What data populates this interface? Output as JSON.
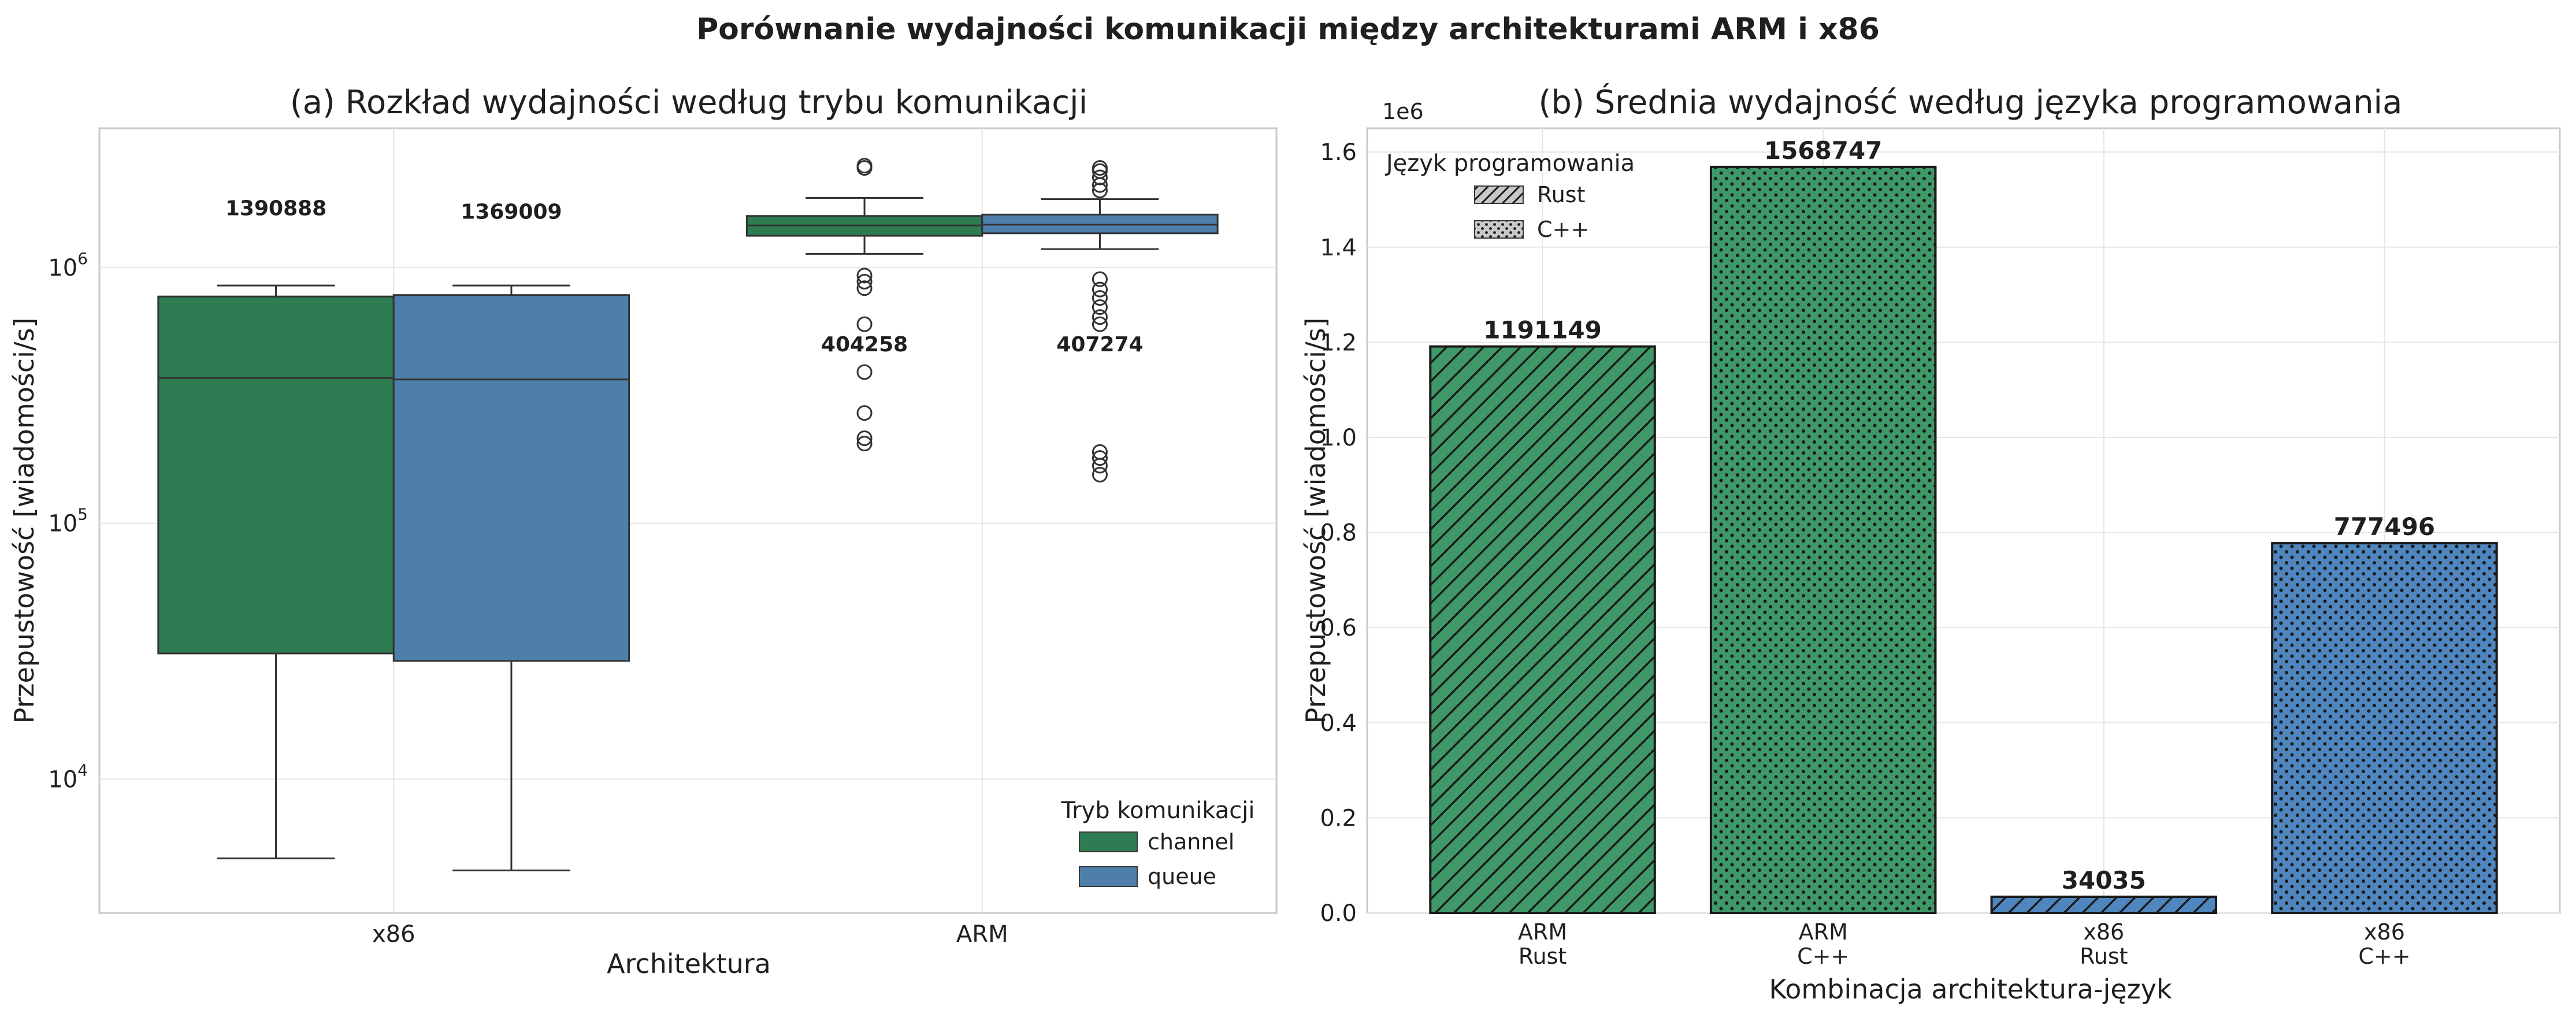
{
  "figure": {
    "suptitle": "Porównanie wydajności komunikacji między architekturami ARM i x86"
  },
  "colors": {
    "channel": "#2e7d52",
    "queue": "#4e7fab",
    "arm_bar": "#3f9868",
    "x86_bar": "#4f86bf",
    "grid": "#e5e5e5",
    "legend_swatch": "#c8c8c8"
  },
  "chart_data": [
    {
      "type": "box",
      "title": "(a) Rozkład wydajności według trybu komunikacji",
      "xlabel": "Architektura",
      "ylabel": "Przepustowość [wiadomości/s]",
      "yscale": "log",
      "ylim": [
        3000,
        3500000
      ],
      "yticks": [
        {
          "value": 10000,
          "base": "10",
          "exp": "4"
        },
        {
          "value": 100000,
          "base": "10",
          "exp": "5"
        },
        {
          "value": 1000000,
          "base": "10",
          "exp": "6"
        }
      ],
      "categories": [
        "x86",
        "ARM"
      ],
      "grid": true,
      "legend": {
        "title": "Tryb komunikacji",
        "position": "lower-right"
      },
      "series": [
        {
          "name": "channel",
          "color_key": "channel",
          "boxes": [
            {
              "q1": 31000,
              "median": 370000,
              "q3": 770000,
              "whisker_low": 4900,
              "whisker_high": 850000,
              "fliers": []
            },
            {
              "q1": 1330000,
              "median": 1460000,
              "q3": 1590000,
              "whisker_low": 1130000,
              "whisker_high": 1870000,
              "fliers": [
                2450000,
                2500000,
                930000,
                880000,
                830000,
                600000,
                390000,
                270000,
                215000,
                205000
              ]
            }
          ]
        },
        {
          "name": "queue",
          "color_key": "queue",
          "boxes": [
            {
              "q1": 29000,
              "median": 365000,
              "q3": 780000,
              "whisker_low": 4400,
              "whisker_high": 850000,
              "fliers": []
            },
            {
              "q1": 1360000,
              "median": 1470000,
              "q3": 1610000,
              "whisker_low": 1180000,
              "whisker_high": 1850000,
              "fliers": [
                2450000,
                2380000,
                2250000,
                2100000,
                2000000,
                900000,
                820000,
                760000,
                700000,
                640000,
                600000,
                190000,
                180000,
                168000,
                155000
              ]
            }
          ]
        }
      ],
      "annotations": [
        {
          "text": "1390888",
          "cat_index": 0,
          "series_index": 0,
          "y": 1600000
        },
        {
          "text": "1369009",
          "cat_index": 0,
          "series_index": 1,
          "y": 1550000
        },
        {
          "text": "404258",
          "cat_index": 1,
          "series_index": 0,
          "y": 470000
        },
        {
          "text": "407274",
          "cat_index": 1,
          "series_index": 1,
          "y": 470000
        }
      ]
    },
    {
      "type": "bar",
      "title": "(b) Średnia wydajność według języka programowania",
      "xlabel": "Kombinacja architektura-język",
      "ylabel": "Przepustowość [wiadomości/s]",
      "offset_label": "1e6",
      "ylim": [
        0,
        1650000
      ],
      "yticks": [
        {
          "value": 0,
          "label": "0.0"
        },
        {
          "value": 200000,
          "label": "0.2"
        },
        {
          "value": 400000,
          "label": "0.4"
        },
        {
          "value": 600000,
          "label": "0.6"
        },
        {
          "value": 800000,
          "label": "0.8"
        },
        {
          "value": 1000000,
          "label": "1.0"
        },
        {
          "value": 1200000,
          "label": "1.2"
        },
        {
          "value": 1400000,
          "label": "1.4"
        },
        {
          "value": 1600000,
          "label": "1.6"
        }
      ],
      "grid": true,
      "legend": {
        "title": "Język programowania",
        "position": "upper-left",
        "items": [
          {
            "label": "Rust",
            "pattern": "hatch"
          },
          {
            "label": "C++",
            "pattern": "dots"
          }
        ]
      },
      "bars": [
        {
          "arch": "ARM",
          "lang": "Rust",
          "value": 1191149,
          "label": "1191149",
          "color_key": "arm_bar",
          "pattern": "hatch"
        },
        {
          "arch": "ARM",
          "lang": "C++",
          "value": 1568747,
          "label": "1568747",
          "color_key": "arm_bar",
          "pattern": "dots"
        },
        {
          "arch": "x86",
          "lang": "Rust",
          "value": 34035,
          "label": "34035",
          "color_key": "x86_bar",
          "pattern": "hatch"
        },
        {
          "arch": "x86",
          "lang": "C++",
          "value": 777496,
          "label": "777496",
          "color_key": "x86_bar",
          "pattern": "dots"
        }
      ]
    }
  ]
}
